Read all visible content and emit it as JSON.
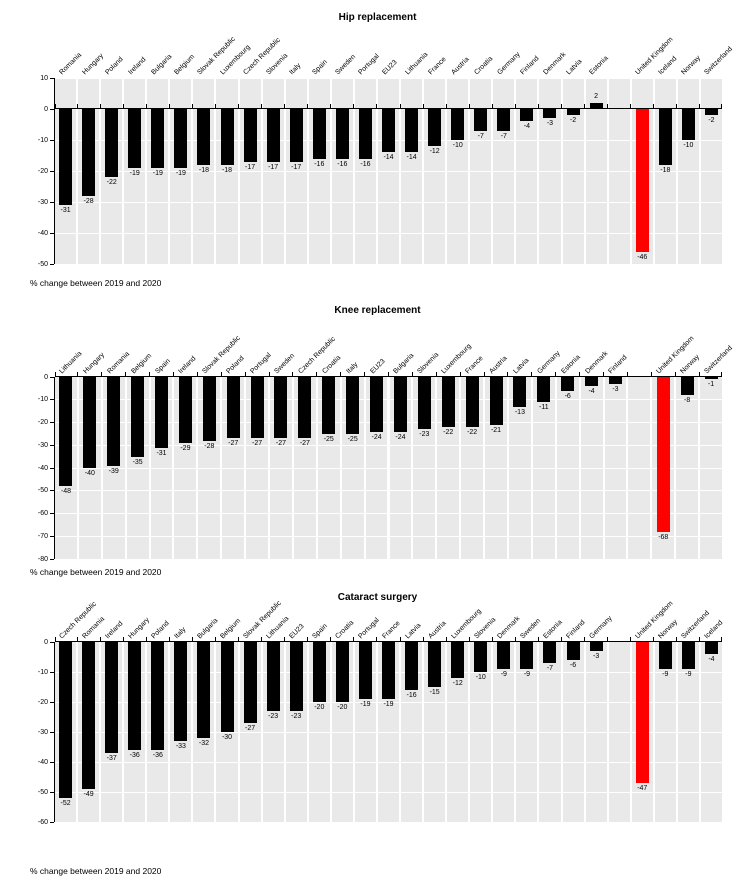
{
  "page": {
    "colors": {
      "bar": "#000000",
      "highlight": "#FF0000",
      "plot_background": "#E9E9E9"
    }
  },
  "chart_data": [
    {
      "type": "bar",
      "title": "Hip replacement",
      "footnote": "% change between 2019 and 2020",
      "ylabel": "% change between 2019 and 2020",
      "ylim": [
        -50,
        10
      ],
      "yticks": [
        10,
        0,
        -10,
        -20,
        -30,
        -40,
        -50
      ],
      "grid": true,
      "bars": [
        {
          "label": "Romania",
          "value": -31
        },
        {
          "label": "Hungary",
          "value": -28
        },
        {
          "label": "Poland",
          "value": -22
        },
        {
          "label": "Ireland",
          "value": -19
        },
        {
          "label": "Bulgaria",
          "value": -19
        },
        {
          "label": "Belgium",
          "value": -19
        },
        {
          "label": "Slovak Republic",
          "value": -18
        },
        {
          "label": "Luxembourg",
          "value": -18
        },
        {
          "label": "Czech Republic",
          "value": -17
        },
        {
          "label": "Slovenia",
          "value": -17
        },
        {
          "label": "Italy",
          "value": -17
        },
        {
          "label": "Spain",
          "value": -16
        },
        {
          "label": "Sweden",
          "value": -16
        },
        {
          "label": "Portugal",
          "value": -16
        },
        {
          "label": "EU23",
          "value": -14
        },
        {
          "label": "Lithuania",
          "value": -14
        },
        {
          "label": "France",
          "value": -12
        },
        {
          "label": "Austria",
          "value": -10
        },
        {
          "label": "Croatia",
          "value": -7
        },
        {
          "label": "Germany",
          "value": -7
        },
        {
          "label": "Finland",
          "value": -4
        },
        {
          "label": "Denmark",
          "value": -3
        },
        {
          "label": "Latvia",
          "value": -2
        },
        {
          "label": "Estonia",
          "value": 2
        },
        {
          "spacer": true
        },
        {
          "label": "United Kingdom",
          "value": -46,
          "highlight": true
        },
        {
          "label": "Iceland",
          "value": -18
        },
        {
          "label": "Norway",
          "value": -10
        },
        {
          "label": "Switzerland",
          "value": -2
        }
      ]
    },
    {
      "type": "bar",
      "title": "Knee replacement",
      "footnote": "% change between 2019 and 2020",
      "ylabel": "% change between 2019 and 2020",
      "ylim": [
        -80,
        0
      ],
      "yticks": [
        0,
        -10,
        -20,
        -30,
        -40,
        -50,
        -60,
        -70,
        -80
      ],
      "grid": true,
      "bars": [
        {
          "label": "Lithuania",
          "value": -48
        },
        {
          "label": "Hungary",
          "value": -40
        },
        {
          "label": "Romania",
          "value": -39
        },
        {
          "label": "Belgium",
          "value": -35
        },
        {
          "label": "Spain",
          "value": -31
        },
        {
          "label": "Ireland",
          "value": -29
        },
        {
          "label": "Slovak Republic",
          "value": -28
        },
        {
          "label": "Poland",
          "value": -27
        },
        {
          "label": "Portugal",
          "value": -27
        },
        {
          "label": "Sweden",
          "value": -27
        },
        {
          "label": "Czech Republic",
          "value": -27
        },
        {
          "label": "Croatia",
          "value": -25
        },
        {
          "label": "Italy",
          "value": -25
        },
        {
          "label": "EU23",
          "value": -24
        },
        {
          "label": "Bulgaria",
          "value": -24
        },
        {
          "label": "Slovenia",
          "value": -23
        },
        {
          "label": "Luxembourg",
          "value": -22
        },
        {
          "label": "France",
          "value": -22
        },
        {
          "label": "Austria",
          "value": -21
        },
        {
          "label": "Latvia",
          "value": -13
        },
        {
          "label": "Germany",
          "value": -11
        },
        {
          "label": "Estonia",
          "value": -6
        },
        {
          "label": "Denmark",
          "value": -4
        },
        {
          "label": "Finland",
          "value": -3
        },
        {
          "spacer": true
        },
        {
          "label": "United Kingdom",
          "value": -68,
          "highlight": true
        },
        {
          "label": "Norway",
          "value": -8
        },
        {
          "label": "Switzerland",
          "value": -1
        }
      ]
    },
    {
      "type": "bar",
      "title": "Cataract surgery",
      "footnote": "% change between 2019 and 2020",
      "ylabel": "% change between 2019 and 2020",
      "ylim": [
        -60,
        0
      ],
      "yticks": [
        0,
        -10,
        -20,
        -30,
        -40,
        -50,
        -60
      ],
      "grid": true,
      "bars": [
        {
          "label": "Czech Republic",
          "value": -52
        },
        {
          "label": "Romania",
          "value": -49
        },
        {
          "label": "Ireland",
          "value": -37
        },
        {
          "label": "Hungary",
          "value": -36
        },
        {
          "label": "Poland",
          "value": -36
        },
        {
          "label": "Italy",
          "value": -33
        },
        {
          "label": "Bulgaria",
          "value": -32
        },
        {
          "label": "Belgium",
          "value": -30
        },
        {
          "label": "Slovak Republic",
          "value": -27
        },
        {
          "label": "Lithuania",
          "value": -23
        },
        {
          "label": "EU23",
          "value": -23
        },
        {
          "label": "Spain",
          "value": -20
        },
        {
          "label": "Croatia",
          "value": -20
        },
        {
          "label": "Portugal",
          "value": -19
        },
        {
          "label": "France",
          "value": -19
        },
        {
          "label": "Latvia",
          "value": -16
        },
        {
          "label": "Austria",
          "value": -15
        },
        {
          "label": "Luxembourg",
          "value": -12
        },
        {
          "label": "Slovenia",
          "value": -10
        },
        {
          "label": "Denmark",
          "value": -9
        },
        {
          "label": "Sweden",
          "value": -9
        },
        {
          "label": "Estonia",
          "value": -7
        },
        {
          "label": "Finland",
          "value": -6
        },
        {
          "label": "Germany",
          "value": -3
        },
        {
          "spacer": true
        },
        {
          "label": "United Kingdom",
          "value": -47,
          "highlight": true
        },
        {
          "label": "Norway",
          "value": -9
        },
        {
          "label": "Switzerland",
          "value": -9
        },
        {
          "label": "Iceland",
          "value": -4
        }
      ]
    }
  ]
}
